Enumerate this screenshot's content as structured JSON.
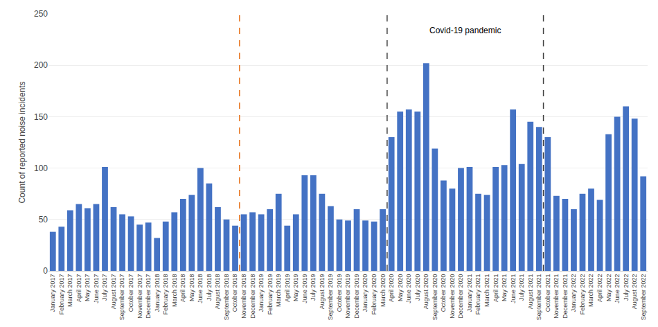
{
  "chart_data": {
    "type": "bar",
    "categories": [
      "January 2017",
      "February 2017",
      "March 2017",
      "April 2017",
      "May 2017",
      "June 2017",
      "July 2017",
      "August 2017",
      "September 2017",
      "October 2017",
      "November 2017",
      "December 2017",
      "January 2018",
      "February 2018",
      "March 2018",
      "April 2018",
      "May 2018",
      "June 2018",
      "July 2018",
      "August 2018",
      "September 2018",
      "October 2018",
      "November 2018",
      "December 2018",
      "January 2019",
      "February 2019",
      "March 2019",
      "April 2019",
      "May 2019",
      "June 2019",
      "July 2019",
      "August 2019",
      "September 2019",
      "October 2019",
      "November 2019",
      "December 2019",
      "January 2020",
      "February 2020",
      "March 2020",
      "April 2020",
      "May 2020",
      "June 2020",
      "July 2020",
      "August 2020",
      "September 2020",
      "October 2020",
      "November 2020",
      "December 2020",
      "January 2021",
      "February 2021",
      "March 2021",
      "April 2021",
      "May 2021",
      "June 2021",
      "July 2021",
      "August 2021",
      "September 2021",
      "October 2021",
      "November 2021",
      "December 2021",
      "January 2022",
      "February 2022",
      "March 2022",
      "April 2022",
      "May 2022",
      "June 2022",
      "July 2022",
      "August 2022",
      "September 2022"
    ],
    "values": [
      38,
      43,
      59,
      65,
      61,
      65,
      101,
      62,
      55,
      53,
      45,
      47,
      32,
      48,
      57,
      70,
      74,
      100,
      85,
      62,
      50,
      44,
      55,
      57,
      55,
      60,
      75,
      44,
      55,
      93,
      93,
      75,
      63,
      50,
      49,
      60,
      49,
      48,
      60,
      130,
      155,
      157,
      155,
      202,
      119,
      88,
      80,
      100,
      101,
      75,
      74,
      101,
      103,
      157,
      104,
      145,
      140,
      130,
      73,
      70,
      60,
      75,
      80,
      69,
      133,
      150,
      160,
      148,
      92
    ],
    "color": "#4472C4",
    "ylabel": "Count of reported noise incidents",
    "ylim": [
      0,
      250
    ],
    "yticks": [
      0,
      50,
      100,
      150,
      200,
      250
    ],
    "grid": true,
    "vlines": [
      {
        "after": "October 2018",
        "color": "#E87722",
        "line_style": "dashed"
      }
    ],
    "spans": [
      {
        "from": "April 2020",
        "to": "September 2021",
        "label": "Covid-19 pandemic",
        "label_y": 240,
        "color": "#404040",
        "line_style": "dashed"
      }
    ]
  }
}
